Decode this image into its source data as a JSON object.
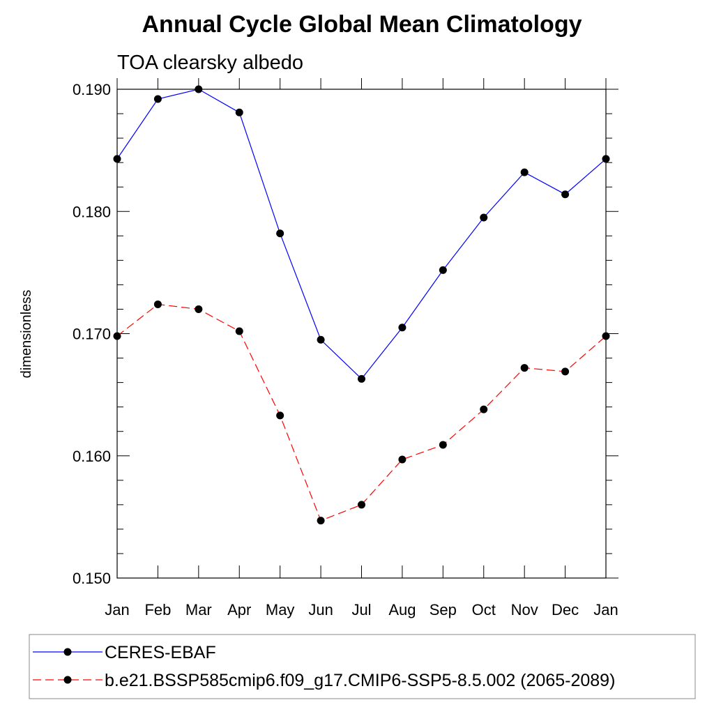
{
  "chart_data": {
    "type": "line",
    "title": "Annual Cycle Global Mean Climatology",
    "subtitle": "TOA clearsky albedo",
    "xlabel": "",
    "ylabel": "dimensionless",
    "categories": [
      "Jan",
      "Feb",
      "Mar",
      "Apr",
      "May",
      "Jun",
      "Jul",
      "Aug",
      "Sep",
      "Oct",
      "Nov",
      "Dec",
      "Jan"
    ],
    "ylim": [
      0.15,
      0.19
    ],
    "yticks": [
      0.15,
      0.16,
      0.17,
      0.18,
      0.19
    ],
    "ytick_labels": [
      "0.150",
      "0.160",
      "0.170",
      "0.180",
      "0.190"
    ],
    "y_minor_step": 0.002,
    "legend_position": "bottom",
    "series": [
      {
        "name": "CERES-EBAF",
        "color": "#0000ff",
        "dash": "solid",
        "marker": "circle",
        "values": [
          0.1843,
          0.1892,
          0.19,
          0.1881,
          0.1782,
          0.1695,
          0.1663,
          0.1705,
          0.1752,
          0.1795,
          0.1832,
          0.1814,
          0.1843
        ]
      },
      {
        "name": "b.e21.BSSP585cmip6.f09_g17.CMIP6-SSP5-8.5.002 (2065-2089)",
        "color": "#ff0000",
        "dash": "dashed",
        "marker": "circle",
        "values": [
          0.1698,
          0.1724,
          0.172,
          0.1702,
          0.1633,
          0.1547,
          0.156,
          0.1597,
          0.1609,
          0.1638,
          0.1672,
          0.1669,
          0.1698
        ]
      }
    ]
  }
}
